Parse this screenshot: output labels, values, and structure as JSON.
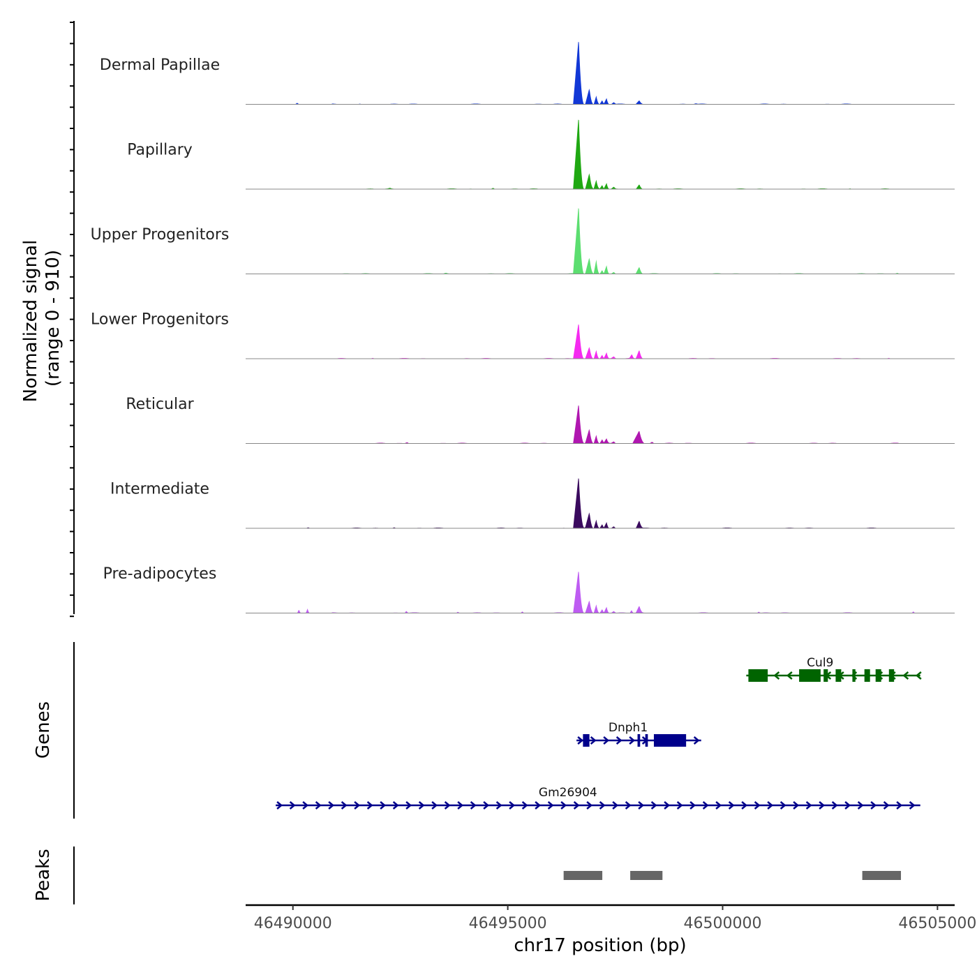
{
  "chart_data": {
    "type": "area",
    "title": "",
    "region": "chr17",
    "xlabel": "chr17 position (bp)",
    "ylabel": "Normalized signal",
    "ylabel_range": "(range 0 - 910)",
    "yrange": [
      0,
      910
    ],
    "xlim": [
      46488900,
      46505400
    ],
    "xticks": [
      46490000,
      46495000,
      46500000,
      46505000
    ],
    "xtick_labels": [
      "46490000",
      "46495000",
      "46500000",
      "46505000"
    ],
    "peak_summit_bp": 46496650,
    "series": [
      {
        "name": "Dermal Papillae",
        "color": "#1238d6",
        "summit_value": 820,
        "peaks": [
          [
            46496520,
            46496650,
            820,
            46496780
          ],
          [
            46496800,
            46496900,
            200,
            46497000
          ],
          [
            46497000,
            46497060,
            105,
            46497140
          ],
          [
            46497140,
            46497200,
            50,
            46497260
          ],
          [
            46497230,
            46497300,
            75,
            46497370
          ],
          [
            46497400,
            46497470,
            25,
            46497540
          ],
          [
            46497980,
            46498060,
            45,
            46498160
          ],
          [
            46490050,
            46490100,
            18,
            46490180
          ],
          [
            46499300,
            46499380,
            10,
            46499450
          ],
          [
            46491500,
            46491560,
            8,
            46491640
          ]
        ]
      },
      {
        "name": "Papillary",
        "color": "#1fa812",
        "summit_value": 910,
        "peaks": [
          [
            46496520,
            46496650,
            910,
            46496780
          ],
          [
            46496800,
            46496900,
            200,
            46497000
          ],
          [
            46497000,
            46497060,
            105,
            46497140
          ],
          [
            46497140,
            46497200,
            50,
            46497260
          ],
          [
            46497230,
            46497300,
            75,
            46497370
          ],
          [
            46497400,
            46497470,
            25,
            46497540
          ],
          [
            46497980,
            46498060,
            60,
            46498160
          ],
          [
            46494600,
            46494660,
            15,
            46494740
          ],
          [
            46492200,
            46492260,
            8,
            46492340
          ],
          [
            46502900,
            46502970,
            8,
            46503040
          ]
        ]
      },
      {
        "name": "Upper Progenitors",
        "color": "#5cde70",
        "summit_value": 860,
        "peaks": [
          [
            46496520,
            46496650,
            860,
            46496780
          ],
          [
            46496800,
            46496900,
            200,
            46497000
          ],
          [
            46497000,
            46497060,
            170,
            46497140
          ],
          [
            46497140,
            46497200,
            50,
            46497260
          ],
          [
            46497230,
            46497300,
            105,
            46497370
          ],
          [
            46497400,
            46497470,
            25,
            46497540
          ],
          [
            46497980,
            46498060,
            85,
            46498160
          ],
          [
            46493500,
            46493560,
            10,
            46493640
          ],
          [
            46504000,
            46504070,
            12,
            46504140
          ]
        ]
      },
      {
        "name": "Lower Progenitors",
        "color": "#f52af0",
        "summit_value": 450,
        "peaks": [
          [
            46496520,
            46496650,
            450,
            46496780
          ],
          [
            46496800,
            46496900,
            150,
            46497000
          ],
          [
            46497000,
            46497060,
            105,
            46497140
          ],
          [
            46497140,
            46497200,
            50,
            46497260
          ],
          [
            46497230,
            46497300,
            75,
            46497370
          ],
          [
            46497400,
            46497470,
            25,
            46497540
          ],
          [
            46497830,
            46497890,
            50,
            46497950
          ],
          [
            46497980,
            46498060,
            110,
            46498160
          ],
          [
            46491800,
            46491860,
            10,
            46491940
          ],
          [
            46503800,
            46503870,
            10,
            46503940
          ]
        ]
      },
      {
        "name": "Reticular",
        "color": "#b017b0",
        "summit_value": 500,
        "peaks": [
          [
            46496520,
            46496650,
            500,
            46496780
          ],
          [
            46496800,
            46496900,
            180,
            46497000
          ],
          [
            46497000,
            46497060,
            105,
            46497140
          ],
          [
            46497140,
            46497200,
            50,
            46497260
          ],
          [
            46497230,
            46497300,
            55,
            46497370
          ],
          [
            46497400,
            46497470,
            25,
            46497540
          ],
          [
            46497900,
            46498060,
            160,
            46498200
          ],
          [
            46498300,
            46498360,
            20,
            46498440
          ],
          [
            46492600,
            46492660,
            15,
            46492740
          ]
        ]
      },
      {
        "name": "Intermediate",
        "color": "#3a0a5e",
        "summit_value": 650,
        "peaks": [
          [
            46496520,
            46496650,
            650,
            46496780
          ],
          [
            46496800,
            46496900,
            200,
            46497000
          ],
          [
            46497000,
            46497060,
            105,
            46497140
          ],
          [
            46497140,
            46497200,
            50,
            46497260
          ],
          [
            46497230,
            46497300,
            75,
            46497370
          ],
          [
            46497400,
            46497470,
            25,
            46497540
          ],
          [
            46497980,
            46498060,
            95,
            46498160
          ],
          [
            46490300,
            46490360,
            12,
            46490440
          ],
          [
            46492300,
            46492360,
            12,
            46492440
          ]
        ]
      },
      {
        "name": "Pre-adipocytes",
        "color": "#be5cf2",
        "summit_value": 540,
        "peaks": [
          [
            46496520,
            46496650,
            540,
            46496780
          ],
          [
            46496800,
            46496900,
            160,
            46497000
          ],
          [
            46497000,
            46497060,
            105,
            46497140
          ],
          [
            46497140,
            46497200,
            50,
            46497260
          ],
          [
            46497230,
            46497300,
            75,
            46497370
          ],
          [
            46497400,
            46497470,
            25,
            46497540
          ],
          [
            46497980,
            46498060,
            85,
            46498160
          ],
          [
            46497840,
            46497880,
            40,
            46497940
          ],
          [
            46490100,
            46490140,
            45,
            46490200
          ],
          [
            46490300,
            46490340,
            55,
            46490400
          ],
          [
            46492600,
            46492640,
            28,
            46492700
          ],
          [
            46495300,
            46495340,
            22,
            46495400
          ],
          [
            46493800,
            46493840,
            15,
            46493900
          ],
          [
            46504400,
            46504440,
            20,
            46504500
          ],
          [
            46500800,
            46500840,
            15,
            46500900
          ]
        ]
      }
    ],
    "genes_track": {
      "label": "Genes",
      "genes": [
        {
          "name": "Cul9",
          "strand": "-",
          "row": 0,
          "color": "#006400",
          "start": 46500550,
          "end": 46504600,
          "exons": [
            [
              46500600,
              46501050
            ],
            [
              46501780,
              46502280
            ],
            [
              46502350,
              46502450
            ],
            [
              46502630,
              46502760
            ],
            [
              46503020,
              46503090
            ],
            [
              46503300,
              46503430
            ],
            [
              46503560,
              46503690
            ],
            [
              46503870,
              46503990
            ]
          ]
        },
        {
          "name": "Dnph1",
          "strand": "+",
          "row": 1,
          "color": "#00008b",
          "start": 46496600,
          "end": 46499500,
          "exons": [
            [
              46496750,
              46496900
            ],
            [
              46498020,
              46498080
            ],
            [
              46498200,
              46498260
            ],
            [
              46498400,
              46499150
            ]
          ]
        },
        {
          "name": "Gm26904",
          "strand": "+",
          "row": 2,
          "color": "#00008b",
          "start": 46489600,
          "end": 46504600,
          "exons": []
        }
      ]
    },
    "peaks_track": {
      "label": "Peaks",
      "regions": [
        [
          46496300,
          46497200
        ],
        [
          46497850,
          46498600
        ],
        [
          46503250,
          46504150
        ]
      ]
    }
  }
}
